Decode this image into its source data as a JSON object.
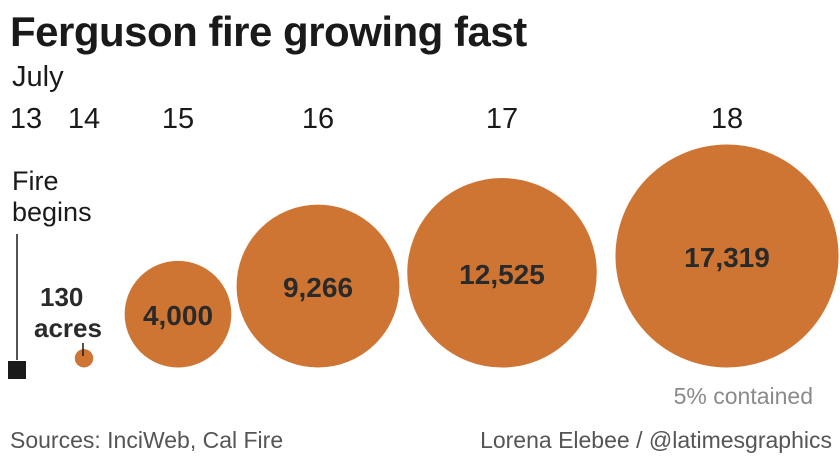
{
  "title": "Ferguson fire growing fast",
  "month_label": "July",
  "start_label_line1": "Fire",
  "start_label_line2": "begins",
  "first_label_value": "130",
  "first_label_unit": "acres",
  "containment_note": "5% contained",
  "sources": "Sources: InciWeb, Cal Fire",
  "credit": "Lorena Elebee / @latimesgraphics",
  "colors": {
    "fire": "#cf7534",
    "marker": "#1a1a1a",
    "label_dark": "#2a2a2a",
    "note": "#8a8a8a"
  },
  "chart_data": {
    "type": "bubble",
    "title": "Ferguson fire growing fast",
    "x_unit": "July",
    "unit": "acres",
    "categories": [
      "13",
      "14",
      "15",
      "16",
      "17",
      "18"
    ],
    "values": [
      null,
      130,
      4000,
      9266,
      12525,
      17319
    ],
    "value_labels": [
      "",
      "130 acres",
      "4,000",
      "9,266",
      "12,525",
      "17,319"
    ],
    "annotations": [
      {
        "category": "13",
        "text": "Fire begins"
      },
      {
        "category": "18",
        "text": "5% contained"
      }
    ]
  }
}
